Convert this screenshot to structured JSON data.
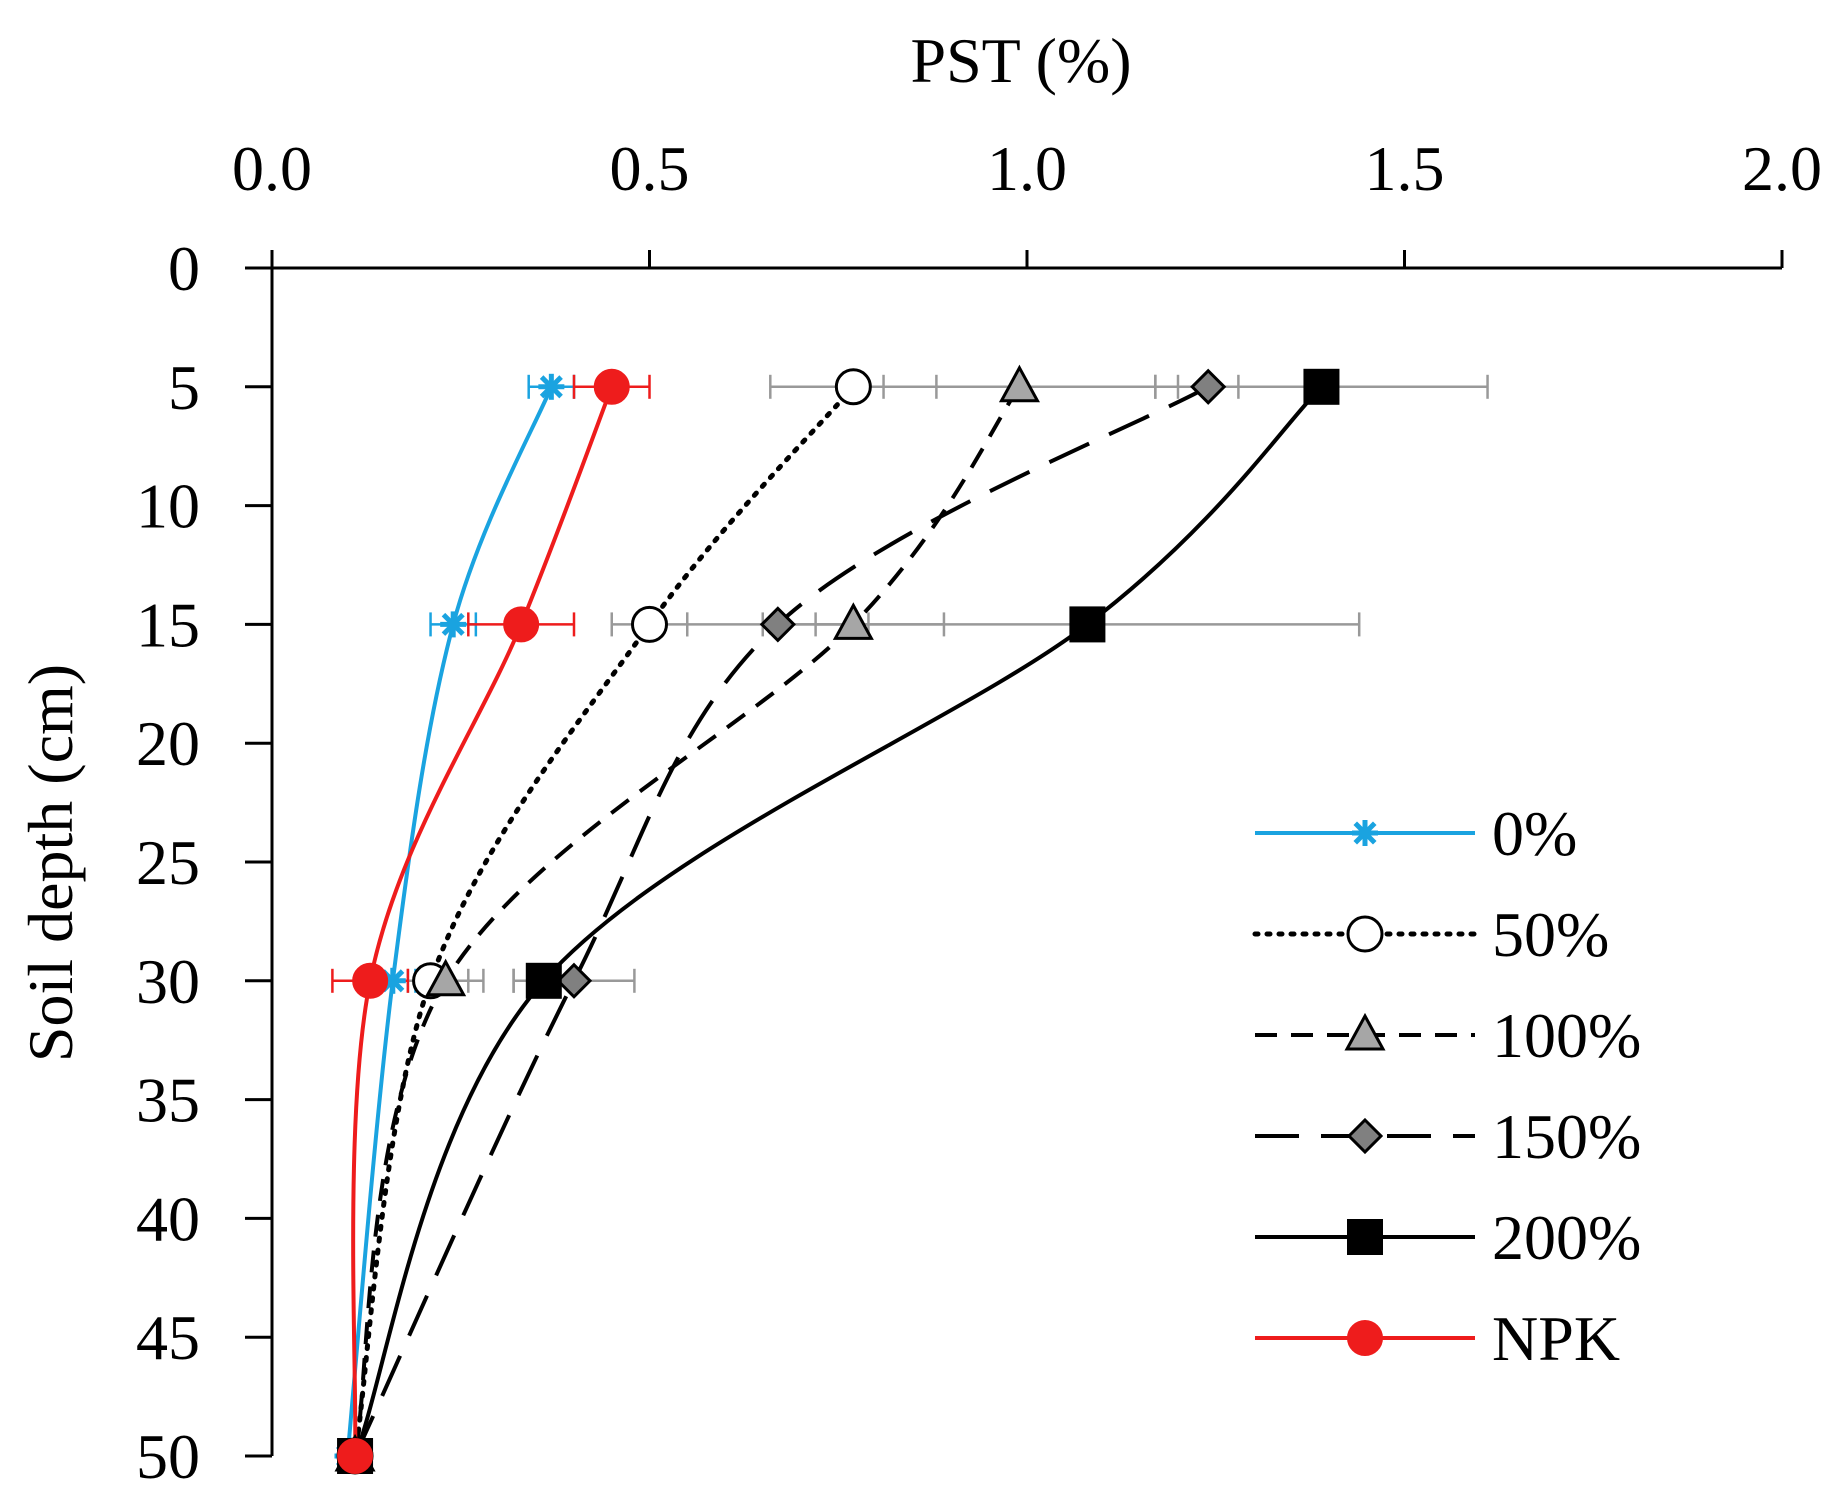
{
  "chart_data": {
    "type": "line",
    "title": "",
    "xlabel": "PST (%)",
    "ylabel": "Soil depth (cm)",
    "xlim": [
      0,
      2
    ],
    "ylim": [
      0,
      50
    ],
    "y_inverted": true,
    "x_axis_position": "top",
    "x_ticks": [
      0,
      0.5,
      1.0,
      1.5,
      2.0
    ],
    "x_tick_labels": [
      "0.0",
      "0.5",
      "1.0",
      "1.5",
      "2.0"
    ],
    "y_ticks": [
      0,
      5,
      10,
      15,
      20,
      25,
      30,
      35,
      40,
      45,
      50
    ],
    "y_tick_labels": [
      "0",
      "5",
      "10",
      "15",
      "20",
      "25",
      "30",
      "35",
      "40",
      "45",
      "50"
    ],
    "legend_position": "right",
    "series": [
      {
        "name": "0%",
        "color": "#1aa3e0",
        "dash": "solid",
        "marker": "asterisk",
        "points": [
          {
            "depth": 5,
            "value": 0.37,
            "error": 0.03
          },
          {
            "depth": 15,
            "value": 0.24,
            "error": 0.03
          },
          {
            "depth": 30,
            "value": 0.16,
            "error": 0.03
          },
          {
            "depth": 50,
            "value": 0.1,
            "error": 0
          }
        ]
      },
      {
        "name": "50%",
        "color": "#000000",
        "dash": "dotted",
        "marker": "circle-open",
        "points": [
          {
            "depth": 5,
            "value": 0.77,
            "error": 0.11
          },
          {
            "depth": 15,
            "value": 0.5,
            "error": 0.05
          },
          {
            "depth": 30,
            "value": 0.21,
            "error": 0.05
          },
          {
            "depth": 50,
            "value": 0.11,
            "error": 0
          }
        ]
      },
      {
        "name": "100%",
        "color": "#000000",
        "dash": "dashed",
        "marker": "triangle-gray",
        "points": [
          {
            "depth": 5,
            "value": 0.99,
            "error": 0.18
          },
          {
            "depth": 15,
            "value": 0.77,
            "error": 0.12
          },
          {
            "depth": 30,
            "value": 0.23,
            "error": 0.05
          },
          {
            "depth": 50,
            "value": 0.11,
            "error": 0
          }
        ]
      },
      {
        "name": "150%",
        "color": "#000000",
        "dash": "longdash",
        "marker": "diamond-gray",
        "points": [
          {
            "depth": 5,
            "value": 1.24,
            "error": 0.04
          },
          {
            "depth": 15,
            "value": 0.67,
            "error": 0.12
          },
          {
            "depth": 30,
            "value": 0.4,
            "error": 0.08
          },
          {
            "depth": 50,
            "value": 0.11,
            "error": 0
          }
        ]
      },
      {
        "name": "200%",
        "color": "#000000",
        "dash": "solid",
        "marker": "square-black",
        "points": [
          {
            "depth": 5,
            "value": 1.39,
            "error": 0.22
          },
          {
            "depth": 15,
            "value": 1.08,
            "error": 0.36
          },
          {
            "depth": 30,
            "value": 0.36,
            "error": 0.04
          },
          {
            "depth": 50,
            "value": 0.11,
            "error": 0
          }
        ]
      },
      {
        "name": "NPK",
        "color": "#ee1c1c",
        "dash": "solid",
        "marker": "circle-red",
        "points": [
          {
            "depth": 5,
            "value": 0.45,
            "error": 0.05
          },
          {
            "depth": 15,
            "value": 0.33,
            "error": 0.07
          },
          {
            "depth": 30,
            "value": 0.13,
            "error": 0.05
          },
          {
            "depth": 50,
            "value": 0.11,
            "error": 0
          }
        ]
      }
    ]
  }
}
